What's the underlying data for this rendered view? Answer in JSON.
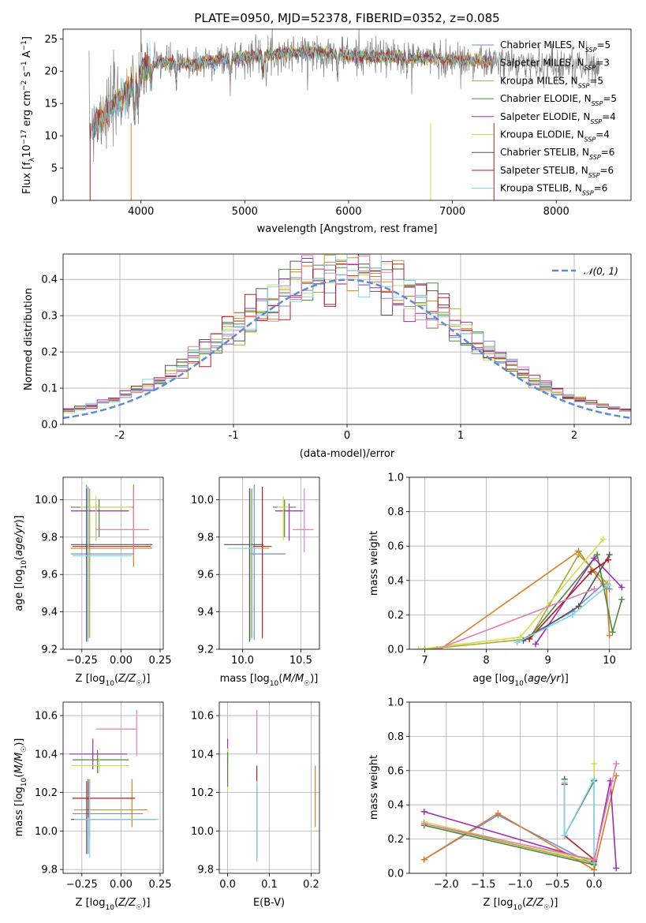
{
  "figure": {
    "title": "PLATE=0950, MJD=52378, FIBERID=0352, z=0.085"
  },
  "colors": {
    "Chabrier MILES": "#6f8fd8",
    "Salpeter MILES": "#de7c1c",
    "Kroupa MILES": "#b1a432",
    "Chabrier ELODIE": "#4f8a3c",
    "Salpeter ELODIE": "#9a2fb4",
    "Kroupa ELODIE": "#cbe04a",
    "Chabrier STELIB": "#555555",
    "Salpeter STELIB": "#b31e1e",
    "Kroupa STELIB": "#7fd6e6",
    "pink": "#e07fb6",
    "data": "#808080",
    "normal": "#5b8bd9"
  },
  "chart_data": [
    {
      "id": "spectrum",
      "type": "line",
      "title": "PLATE=0950, MJD=52378, FIBERID=0352, z=0.085",
      "xlabel": "wavelength [Angstrom, rest frame]",
      "ylabel": "Flux [f_λ 10^-17 erg cm^-2 s^-1 A^-1]",
      "xlim": [
        3250,
        8720
      ],
      "ylim": [
        0,
        26.5
      ],
      "xticks": [
        4000,
        5000,
        6000,
        7000,
        8000
      ],
      "yticks": [
        0,
        5,
        10,
        15,
        20,
        25
      ],
      "grid": false,
      "legend_position": "upper right",
      "legend": [
        "Chabrier MILES, N_SSP=5",
        "Salpeter MILES, N_SSP=3",
        "Kroupa MILES, N_SSP=5",
        "Chabrier ELODIE, N_SSP=5",
        "Salpeter ELODIE, N_SSP=4",
        "Kroupa ELODIE, N_SSP=4",
        "Chabrier STELIB, N_SSP=6",
        "Salpeter STELIB, N_SSP=6",
        "Kroupa STELIB, N_SSP=6"
      ],
      "continuum": {
        "x": [
          3500,
          3700,
          3850,
          3950,
          4050,
          4200,
          4400,
          4800,
          5200,
          5600,
          6000,
          6400,
          6800,
          7200,
          7600,
          8000,
          8400
        ],
        "y": [
          11.5,
          14.0,
          16.5,
          18.5,
          20.5,
          21.5,
          21.0,
          21.8,
          22.5,
          23.0,
          22.5,
          22.2,
          22.0,
          21.6,
          21.2,
          21.0,
          20.8
        ]
      }
    },
    {
      "id": "residuals",
      "type": "line",
      "xlabel": "(data-model)/error",
      "ylabel": "Normed distribution",
      "xlim": [
        -2.5,
        2.5
      ],
      "ylim": [
        0,
        0.47
      ],
      "xticks": [
        -2,
        -1,
        0,
        1,
        2
      ],
      "yticks": [
        0.0,
        0.1,
        0.2,
        0.3,
        0.4
      ],
      "grid": true,
      "legend_position": "upper right",
      "legend": [
        "𝒩(0, 1)"
      ],
      "normal": {
        "mean": 0,
        "sigma": 1
      }
    },
    {
      "id": "age-vs-Z",
      "type": "scatter",
      "xlabel": "Z [log10(Z/Z☉)]",
      "ylabel": "age [log10(age/yr)]",
      "xlim": [
        -0.37,
        0.27
      ],
      "ylim": [
        9.2,
        10.12
      ],
      "xticks": [
        -0.25,
        0.0,
        0.25
      ],
      "xticklabels": [
        "−0.25",
        "0.00",
        "0.25"
      ],
      "yticks": [
        9.2,
        9.4,
        9.6,
        9.8,
        10.0
      ],
      "yticklabels": [
        "9.2",
        "9.4",
        "9.6",
        "9.8",
        "10.0"
      ],
      "grid": true,
      "points": [
        {
          "color": "Chabrier MILES",
          "x": -0.22,
          "y": 9.71,
          "xerr": [
            0.1,
            0.3
          ],
          "yerr": [
            0.46,
            0.37
          ]
        },
        {
          "color": "Salpeter MILES",
          "x": 0.08,
          "y": 9.74,
          "xerr": [
            0.4,
            0.12
          ],
          "yerr": [
            0.1,
            0.34
          ]
        },
        {
          "color": "Kroupa MILES",
          "x": -0.2,
          "y": 9.74,
          "xerr": [
            0.1,
            0.32
          ],
          "yerr": [
            0.48,
            0.32
          ]
        },
        {
          "color": "Chabrier ELODIE",
          "x": -0.14,
          "y": 9.96,
          "xerr": [
            0.18,
            0.22
          ],
          "yerr": [
            0.16,
            0.04
          ]
        },
        {
          "color": "Salpeter ELODIE",
          "x": -0.16,
          "y": 9.94,
          "xerr": [
            0.16,
            0.21
          ],
          "yerr": [
            0.16,
            0.04
          ]
        },
        {
          "color": "Kroupa ELODIE",
          "x": -0.16,
          "y": 9.96,
          "xerr": [
            0.1,
            0.23
          ],
          "yerr": [
            0.18,
            0.06
          ]
        },
        {
          "color": "Chabrier STELIB",
          "x": -0.22,
          "y": 9.76,
          "xerr": [
            0.1,
            0.42
          ],
          "yerr": [
            0.52,
            0.3
          ]
        },
        {
          "color": "Salpeter STELIB",
          "x": -0.21,
          "y": 9.75,
          "xerr": [
            0.1,
            0.4
          ],
          "yerr": [
            0.49,
            0.32
          ]
        },
        {
          "color": "Kroupa STELIB",
          "x": -0.21,
          "y": 9.7,
          "xerr": [
            0.1,
            0.28
          ],
          "yerr": [
            0.46,
            0.37
          ]
        },
        {
          "color": "pink",
          "x": 0.08,
          "y": 9.84,
          "xerr": [
            0.24,
            0.1
          ],
          "yerr": [
            0.12,
            0.22
          ]
        }
      ]
    },
    {
      "id": "age-vs-mass",
      "type": "scatter",
      "xlabel": "mass [log10(M/M☉)]",
      "xlim": [
        9.8,
        10.66
      ],
      "ylim": [
        9.2,
        10.12
      ],
      "xticks": [
        10.0,
        10.5
      ],
      "xticklabels": [
        "10.0",
        "10.5"
      ],
      "yticks": [
        9.2,
        9.4,
        9.6,
        9.8,
        10.0
      ],
      "yticklabels": [
        "9.2",
        "9.4",
        "9.6",
        "9.8",
        "10.0"
      ],
      "grid": true,
      "points": [
        {
          "color": "Chabrier MILES",
          "x": 10.1,
          "y": 9.71,
          "xerr": [
            0.04,
            0.27
          ],
          "yerr": [
            0.46,
            0.37
          ]
        },
        {
          "color": "Kroupa MILES",
          "x": 10.08,
          "y": 9.74,
          "xerr": [
            0.06,
            0.15
          ],
          "yerr": [
            0.48,
            0.32
          ]
        },
        {
          "color": "Chabrier ELODIE",
          "x": 10.36,
          "y": 9.96,
          "xerr": [
            0.1,
            0.1
          ],
          "yerr": [
            0.16,
            0.04
          ]
        },
        {
          "color": "Salpeter ELODIE",
          "x": 10.4,
          "y": 9.94,
          "xerr": [
            0.12,
            0.12
          ],
          "yerr": [
            0.16,
            0.04
          ]
        },
        {
          "color": "Kroupa ELODIE",
          "x": 10.35,
          "y": 9.96,
          "xerr": [
            0.05,
            0.05
          ],
          "yerr": [
            0.18,
            0.06
          ]
        },
        {
          "color": "Chabrier STELIB",
          "x": 10.06,
          "y": 9.76,
          "xerr": [
            0.22,
            0.12
          ],
          "yerr": [
            0.52,
            0.3
          ]
        },
        {
          "color": "Salpeter STELIB",
          "x": 10.17,
          "y": 9.75,
          "xerr": [
            0.08,
            0.08
          ],
          "yerr": [
            0.49,
            0.32
          ]
        },
        {
          "color": "Kroupa STELIB",
          "x": 10.07,
          "y": 9.74,
          "xerr": [
            0.2,
            0.1
          ],
          "yerr": [
            0.49,
            0.32
          ]
        },
        {
          "color": "pink",
          "x": 10.53,
          "y": 9.84,
          "xerr": [
            0.1,
            0.08
          ],
          "yerr": [
            0.12,
            0.22
          ]
        }
      ]
    },
    {
      "id": "mass-weight-vs-age",
      "type": "line",
      "xlabel": "age [log10(age/yr)]",
      "ylabel": "mass weight",
      "xlim": [
        6.75,
        10.35
      ],
      "ylim": [
        0,
        1.0
      ],
      "xticks": [
        7,
        8,
        9,
        10
      ],
      "xticklabels": [
        "7",
        "8",
        "9",
        "10"
      ],
      "yticks": [
        0.0,
        0.2,
        0.4,
        0.6,
        0.8,
        1.0
      ],
      "yticklabels": [
        "0.0",
        "0.2",
        "0.4",
        "0.6",
        "0.8",
        "1.0"
      ],
      "grid": true,
      "series": [
        {
          "color": "Chabrier MILES",
          "x": [
            8.5,
            9.4,
            9.9,
            10.0
          ],
          "y": [
            0.04,
            0.22,
            0.38,
            0.35
          ]
        },
        {
          "color": "Salpeter MILES",
          "x": [
            7.25,
            9.5,
            9.95,
            10.0
          ],
          "y": [
            0.0,
            0.57,
            0.35,
            0.08
          ]
        },
        {
          "color": "Kroupa MILES",
          "x": [
            7.0,
            8.7,
            9.5,
            9.97
          ],
          "y": [
            0.0,
            0.06,
            0.55,
            0.38
          ]
        },
        {
          "color": "Chabrier ELODIE",
          "x": [
            8.7,
            9.8,
            10.05,
            10.2
          ],
          "y": [
            0.07,
            0.55,
            0.1,
            0.29
          ]
        },
        {
          "color": "Salpeter ELODIE",
          "x": [
            8.8,
            9.75,
            10.2
          ],
          "y": [
            0.03,
            0.53,
            0.36
          ]
        },
        {
          "color": "Kroupa ELODIE",
          "x": [
            6.9,
            8.55,
            9.9
          ],
          "y": [
            0.0,
            0.07,
            0.64
          ]
        },
        {
          "color": "Chabrier STELIB",
          "x": [
            8.6,
            9.5,
            10.0
          ],
          "y": [
            0.05,
            0.25,
            0.55
          ]
        },
        {
          "color": "Salpeter STELIB",
          "x": [
            8.7,
            9.7,
            9.98
          ],
          "y": [
            0.06,
            0.45,
            0.52
          ]
        },
        {
          "color": "Kroupa STELIB",
          "x": [
            8.5,
            9.4,
            9.97
          ],
          "y": [
            0.04,
            0.2,
            0.37
          ]
        },
        {
          "color": "pink",
          "x": [
            7.2,
            9.75
          ],
          "y": [
            0.0,
            0.35
          ]
        }
      ]
    },
    {
      "id": "mass-vs-Z",
      "type": "scatter",
      "xlabel": "Z [log10(Z/Z☉)]",
      "ylabel": "mass [log10(M/M☉)]",
      "xlim": [
        -0.37,
        0.27
      ],
      "ylim": [
        9.78,
        10.67
      ],
      "xticks": [
        -0.25,
        0.0,
        0.25
      ],
      "xticklabels": [
        "−0.25",
        "0.00",
        "0.25"
      ],
      "yticks": [
        9.8,
        10.0,
        10.2,
        10.4,
        10.6
      ],
      "yticklabels": [
        "9.8",
        "10.0",
        "10.2",
        "10.4",
        "10.6"
      ],
      "grid": true,
      "points": [
        {
          "color": "Chabrier MILES",
          "x": -0.21,
          "y": 10.09,
          "xerr": [
            0.1,
            0.35
          ],
          "yerr": [
            0.21,
            0.16
          ]
        },
        {
          "color": "Salpeter MILES",
          "x": 0.07,
          "y": 10.11,
          "xerr": [
            0.37,
            0.1
          ],
          "yerr": [
            0.09,
            0.16
          ]
        },
        {
          "color": "Kroupa MILES",
          "x": -0.2,
          "y": 10.11,
          "xerr": [
            0.1,
            0.3
          ],
          "yerr": [
            0.15,
            0.16
          ]
        },
        {
          "color": "Chabrier ELODIE",
          "x": -0.15,
          "y": 10.37,
          "xerr": [
            0.16,
            0.2
          ],
          "yerr": [
            0.07,
            0.05
          ]
        },
        {
          "color": "Salpeter ELODIE",
          "x": -0.18,
          "y": 10.4,
          "xerr": [
            0.15,
            0.22
          ],
          "yerr": [
            0.08,
            0.08
          ]
        },
        {
          "color": "Kroupa ELODIE",
          "x": -0.14,
          "y": 10.34,
          "xerr": [
            0.18,
            0.19
          ],
          "yerr": [
            0.04,
            0.04
          ]
        },
        {
          "color": "Chabrier STELIB",
          "x": -0.22,
          "y": 10.06,
          "xerr": [
            0.1,
            0.44
          ],
          "yerr": [
            0.18,
            0.2
          ]
        },
        {
          "color": "Salpeter STELIB",
          "x": -0.21,
          "y": 10.17,
          "xerr": [
            0.1,
            0.3
          ],
          "yerr": [
            0.1,
            0.1
          ]
        },
        {
          "color": "Kroupa STELIB",
          "x": -0.2,
          "y": 10.06,
          "xerr": [
            0.1,
            0.44
          ],
          "yerr": [
            0.2,
            0.2
          ]
        },
        {
          "color": "pink",
          "x": 0.1,
          "y": 10.53,
          "xerr": [
            0.26,
            0.0
          ],
          "yerr": [
            0.14,
            0.1
          ]
        }
      ]
    },
    {
      "id": "mass-vs-EBV",
      "type": "scatter",
      "xlabel": "E(B-V)",
      "xlim": [
        -0.02,
        0.22
      ],
      "ylim": [
        9.78,
        10.67
      ],
      "xticks": [
        0.0,
        0.1,
        0.2
      ],
      "xticklabels": [
        "0.0",
        "0.1",
        "0.2"
      ],
      "yticks": [
        9.8,
        10.0,
        10.2,
        10.4,
        10.6
      ],
      "yticklabels": [
        "9.8",
        "10.0",
        "10.2",
        "10.4",
        "10.6"
      ],
      "grid": true,
      "points": [
        {
          "color": "Salpeter ELODIE",
          "x": 0.0,
          "y": 10.4,
          "xerr": [
            0,
            0
          ],
          "yerr": [
            0.05,
            0.08
          ]
        },
        {
          "color": "Kroupa ELODIE",
          "x": 0.0,
          "y": 10.31,
          "xerr": [
            0,
            0
          ],
          "yerr": [
            0.1,
            0.12
          ]
        },
        {
          "color": "Chabrier ELODIE",
          "x": 0.0,
          "y": 10.33,
          "xerr": [
            0,
            0
          ],
          "yerr": [
            0.1,
            0.08
          ]
        },
        {
          "color": "pink",
          "x": 0.07,
          "y": 10.52,
          "xerr": [
            0,
            0
          ],
          "yerr": [
            0.12,
            0.11
          ]
        },
        {
          "color": "Salpeter STELIB",
          "x": 0.07,
          "y": 10.2,
          "xerr": [
            0,
            0
          ],
          "yerr": [
            0.34,
            0.14
          ]
        },
        {
          "color": "Chabrier STELIB",
          "x": 0.07,
          "y": 10.06,
          "xerr": [
            0,
            0
          ],
          "yerr": [
            0.22,
            0.18
          ]
        },
        {
          "color": "Kroupa STELIB",
          "x": 0.07,
          "y": 10.06,
          "xerr": [
            0,
            0
          ],
          "yerr": [
            0.22,
            0.2
          ]
        },
        {
          "color": "Salpeter MILES",
          "x": 0.21,
          "y": 10.18,
          "xerr": [
            0,
            0
          ],
          "yerr": [
            0.16,
            0.16
          ]
        }
      ]
    },
    {
      "id": "mass-weight-vs-Z",
      "type": "line",
      "xlabel": "Z [log10(Z/Z☉)]",
      "ylabel": "mass weight",
      "xlim": [
        -2.5,
        0.5
      ],
      "ylim": [
        0,
        1.0
      ],
      "xticks": [
        -2.0,
        -1.5,
        -1.0,
        -0.5,
        0.0
      ],
      "xticklabels": [
        "−2.0",
        "−1.5",
        "−1.0",
        "−0.5",
        "0.0"
      ],
      "yticks": [
        0.0,
        0.2,
        0.4,
        0.6,
        0.8,
        1.0
      ],
      "yticklabels": [
        "0.0",
        "0.2",
        "0.4",
        "0.6",
        "0.8",
        "1.0"
      ],
      "grid": true,
      "series": [
        {
          "color": "Chabrier MILES",
          "x": [
            -2.3,
            -1.3,
            0.0
          ],
          "y": [
            0.08,
            0.34,
            0.05
          ]
        },
        {
          "color": "Salpeter MILES",
          "x": [
            -2.3,
            -1.3,
            0.0,
            0.3
          ],
          "y": [
            0.08,
            0.35,
            0.02,
            0.57
          ]
        },
        {
          "color": "Kroupa MILES",
          "x": [
            -2.3,
            0.0
          ],
          "y": [
            0.29,
            0.06
          ]
        },
        {
          "color": "Chabrier ELODIE",
          "x": [
            -2.3,
            0.0
          ],
          "y": [
            0.28,
            0.05
          ]
        },
        {
          "color": "Salpeter ELODIE",
          "x": [
            -2.3,
            0.0,
            0.22,
            0.3
          ],
          "y": [
            0.36,
            0.07,
            0.54,
            0.03
          ]
        },
        {
          "color": "Kroupa ELODIE",
          "x": [
            -2.3,
            0.0,
            0.0
          ],
          "y": [
            0.3,
            0.07,
            0.64
          ]
        },
        {
          "color": "Chabrier STELIB",
          "x": [
            -0.4,
            -0.4,
            0.0,
            0.0
          ],
          "y": [
            0.55,
            0.22,
            0.54,
            0.07
          ]
        },
        {
          "color": "Salpeter STELIB",
          "x": [
            -0.4,
            -0.4,
            0.0
          ],
          "y": [
            0.52,
            0.22,
            0.08
          ]
        },
        {
          "color": "Kroupa STELIB",
          "x": [
            -0.4,
            -0.4,
            0.0,
            0.0
          ],
          "y": [
            0.53,
            0.22,
            0.55,
            0.06
          ]
        },
        {
          "color": "pink",
          "x": [
            -2.3,
            0.0,
            0.3
          ],
          "y": [
            0.29,
            0.08,
            0.64
          ]
        }
      ]
    }
  ]
}
